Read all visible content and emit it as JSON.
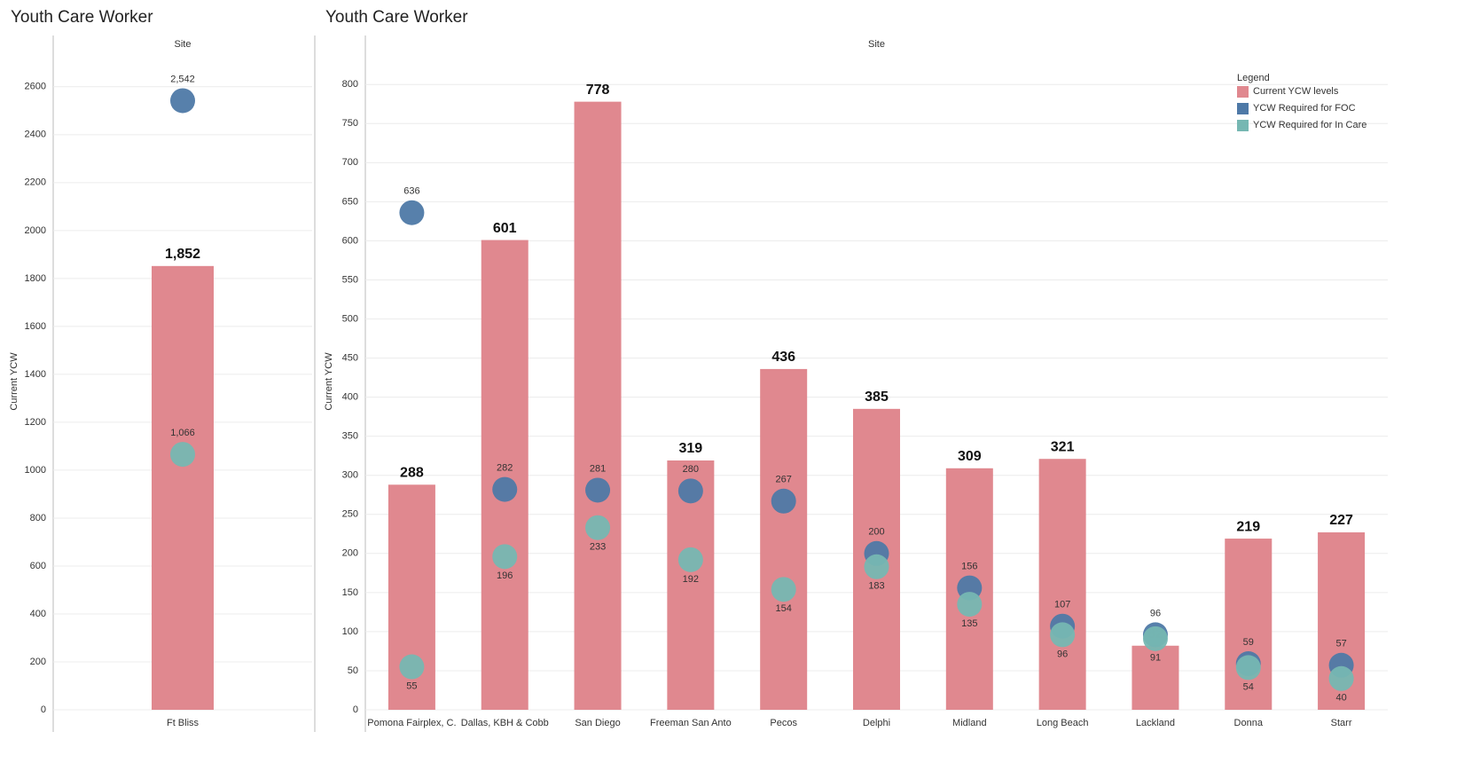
{
  "chart_data": [
    {
      "type": "bar",
      "title": "Youth Care Worker",
      "x_header": "Site",
      "y_label": "Current YCW",
      "categories": [
        "Ft Bliss"
      ],
      "series": [
        {
          "name": "Current YCW levels",
          "color": "#e0888f",
          "mark": "bar",
          "values": [
            1852
          ],
          "value_labels": [
            "1,852"
          ]
        },
        {
          "name": "YCW Required for FOC",
          "color": "#4e79a7",
          "mark": "circle",
          "values": [
            2542
          ],
          "value_labels": [
            "2,542"
          ]
        },
        {
          "name": "YCW Required for In Care",
          "color": "#76b7b2",
          "mark": "circle",
          "values": [
            1066
          ],
          "value_labels": [
            "1,066"
          ]
        }
      ],
      "ylim": [
        0,
        2740
      ],
      "yticks": [
        0,
        200,
        400,
        600,
        800,
        1000,
        1200,
        1400,
        1600,
        1800,
        2000,
        2200,
        2400,
        2600
      ],
      "grid": true
    },
    {
      "type": "bar",
      "title": "Youth Care Worker",
      "x_header": "Site",
      "y_label": "Current YCW",
      "legend_title": "Legend",
      "legend": "top-right",
      "categories": [
        "Pomona Fairplex, C.",
        "Dallas, KBH & Cobb",
        "San Diego",
        "Freeman San Anto",
        "Pecos",
        "Delphi",
        "Midland",
        "Long Beach",
        "Lackland",
        "Donna",
        "Starr"
      ],
      "series": [
        {
          "name": "Current YCW levels",
          "color": "#e0888f",
          "mark": "bar",
          "values": [
            288,
            601,
            778,
            319,
            436,
            385,
            309,
            321,
            82,
            219,
            227
          ]
        },
        {
          "name": "YCW Required for FOC",
          "color": "#4e79a7",
          "mark": "circle",
          "values": [
            636,
            282,
            281,
            280,
            267,
            200,
            156,
            107,
            96,
            59,
            57
          ]
        },
        {
          "name": "YCW Required for In Care",
          "color": "#76b7b2",
          "mark": "circle",
          "values": [
            55,
            196,
            233,
            192,
            154,
            183,
            135,
            96,
            91,
            54,
            40
          ]
        }
      ],
      "ylim": [
        0,
        840
      ],
      "yticks": [
        0,
        50,
        100,
        150,
        200,
        250,
        300,
        350,
        400,
        450,
        500,
        550,
        600,
        650,
        700,
        750,
        800
      ],
      "grid": true
    }
  ]
}
